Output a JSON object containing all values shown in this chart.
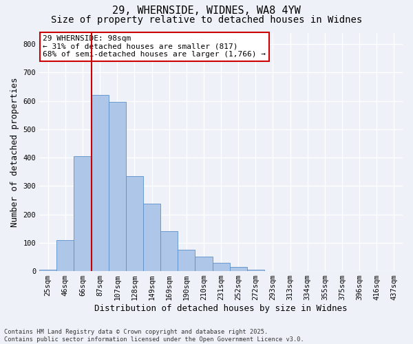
{
  "title_line1": "29, WHERNSIDE, WIDNES, WA8 4YW",
  "title_line2": "Size of property relative to detached houses in Widnes",
  "xlabel": "Distribution of detached houses by size in Widnes",
  "ylabel": "Number of detached properties",
  "bar_labels": [
    "25sqm",
    "46sqm",
    "66sqm",
    "87sqm",
    "107sqm",
    "128sqm",
    "149sqm",
    "169sqm",
    "190sqm",
    "210sqm",
    "231sqm",
    "252sqm",
    "272sqm",
    "293sqm",
    "313sqm",
    "334sqm",
    "355sqm",
    "375sqm",
    "396sqm",
    "416sqm",
    "437sqm"
  ],
  "bar_values": [
    5,
    110,
    405,
    620,
    597,
    335,
    238,
    140,
    75,
    50,
    30,
    15,
    5,
    0,
    0,
    0,
    0,
    0,
    0,
    0,
    0
  ],
  "bar_color": "#aec6e8",
  "bar_edge_color": "#5b8fc9",
  "vline_x_index": 3,
  "vline_color": "#cc0000",
  "annotation_text": "29 WHERNSIDE: 98sqm\n← 31% of detached houses are smaller (817)\n68% of semi-detached houses are larger (1,766) →",
  "annotation_box_color": "#ffffff",
  "annotation_box_edge": "#cc0000",
  "ylim": [
    0,
    840
  ],
  "yticks": [
    0,
    100,
    200,
    300,
    400,
    500,
    600,
    700,
    800
  ],
  "background_color": "#eef2f8",
  "footer_text": "Contains HM Land Registry data © Crown copyright and database right 2025.\nContains public sector information licensed under the Open Government Licence v3.0.",
  "title_fontsize": 11,
  "subtitle_fontsize": 10,
  "tick_fontsize": 7.5,
  "xlabel_fontsize": 9,
  "ylabel_fontsize": 9,
  "annotation_fontsize": 8
}
